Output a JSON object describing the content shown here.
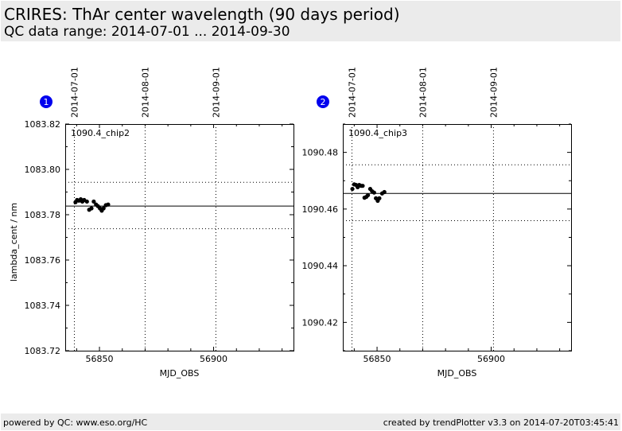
{
  "header": {
    "title": "CRIRES: ThAr center wavelength (90 days period)",
    "subtitle": "QC data range: 2014-07-01 ... 2014-09-30"
  },
  "footer": {
    "left": "powered by QC: www.eso.org/HC",
    "right": "created by trendPlotter v3.3 on 2014-07-20T03:45:41"
  },
  "colors": {
    "header_bg": "#ebebeb",
    "badge": "#0000ee",
    "points": "#000000"
  },
  "chart_data": [
    {
      "type": "scatter",
      "badge": "1",
      "panel_label": "1090.4_chip2",
      "xlabel": "MJD_OBS",
      "ylabel": "lambda_cent / nm",
      "xlim": [
        56835,
        56935
      ],
      "ylim": [
        1083.72,
        1083.82
      ],
      "x_ticks": [
        56850,
        56900
      ],
      "y_ticks": [
        "1083.72",
        "1083.74",
        "1083.76",
        "1083.78",
        "1083.80",
        "1083.82"
      ],
      "date_lines": [
        {
          "mjd": 56839,
          "label": "2014-07-01"
        },
        {
          "mjd": 56870,
          "label": "2014-08-01"
        },
        {
          "mjd": 56901,
          "label": "2014-09-01"
        }
      ],
      "reference_line": 1083.7838,
      "tolerance_band": [
        1083.7738,
        1083.7943
      ],
      "grid": false,
      "points": [
        {
          "x": 56839.5,
          "y": 1083.7855
        },
        {
          "x": 56840.2,
          "y": 1083.7865
        },
        {
          "x": 56841.0,
          "y": 1083.7862
        },
        {
          "x": 56841.8,
          "y": 1083.7868
        },
        {
          "x": 56842.5,
          "y": 1083.7858
        },
        {
          "x": 56843.3,
          "y": 1083.7865
        },
        {
          "x": 56844.5,
          "y": 1083.7858
        },
        {
          "x": 56845.5,
          "y": 1083.7822
        },
        {
          "x": 56846.5,
          "y": 1083.7828
        },
        {
          "x": 56847.5,
          "y": 1083.7858
        },
        {
          "x": 56848.5,
          "y": 1083.7845
        },
        {
          "x": 56849.3,
          "y": 1083.7838
        },
        {
          "x": 56850.2,
          "y": 1083.7828
        },
        {
          "x": 56851.0,
          "y": 1083.7818
        },
        {
          "x": 56851.8,
          "y": 1083.7828
        },
        {
          "x": 56852.8,
          "y": 1083.7842
        },
        {
          "x": 56853.8,
          "y": 1083.7845
        }
      ]
    },
    {
      "type": "scatter",
      "badge": "2",
      "panel_label": "1090.4_chip3",
      "xlabel": "MJD_OBS",
      "ylabel": "",
      "xlim": [
        56835,
        56935
      ],
      "ylim": [
        1090.41,
        1090.49
      ],
      "x_ticks": [
        56850,
        56900
      ],
      "y_ticks": [
        "1090.42",
        "1090.44",
        "1090.46",
        "1090.48"
      ],
      "date_lines": [
        {
          "mjd": 56839,
          "label": "2014-07-01"
        },
        {
          "mjd": 56870,
          "label": "2014-08-01"
        },
        {
          "mjd": 56901,
          "label": "2014-09-01"
        }
      ],
      "reference_line": 1090.4655,
      "tolerance_band": [
        1090.4559,
        1090.4756
      ],
      "grid": false,
      "points": [
        {
          "x": 56839.2,
          "y": 1090.4671
        },
        {
          "x": 56840.0,
          "y": 1090.4687
        },
        {
          "x": 56840.8,
          "y": 1090.4685
        },
        {
          "x": 56841.5,
          "y": 1090.4677
        },
        {
          "x": 56842.2,
          "y": 1090.4685
        },
        {
          "x": 56843.0,
          "y": 1090.4682
        },
        {
          "x": 56843.7,
          "y": 1090.4682
        },
        {
          "x": 56844.5,
          "y": 1090.464
        },
        {
          "x": 56845.3,
          "y": 1090.4643
        },
        {
          "x": 56846.0,
          "y": 1090.4649
        },
        {
          "x": 56847.0,
          "y": 1090.4671
        },
        {
          "x": 56847.8,
          "y": 1090.4663
        },
        {
          "x": 56848.7,
          "y": 1090.4658
        },
        {
          "x": 56849.5,
          "y": 1090.4638
        },
        {
          "x": 56850.3,
          "y": 1090.4629
        },
        {
          "x": 56851.0,
          "y": 1090.4638
        },
        {
          "x": 56852.2,
          "y": 1090.4655
        },
        {
          "x": 56853.2,
          "y": 1090.466
        }
      ]
    }
  ]
}
